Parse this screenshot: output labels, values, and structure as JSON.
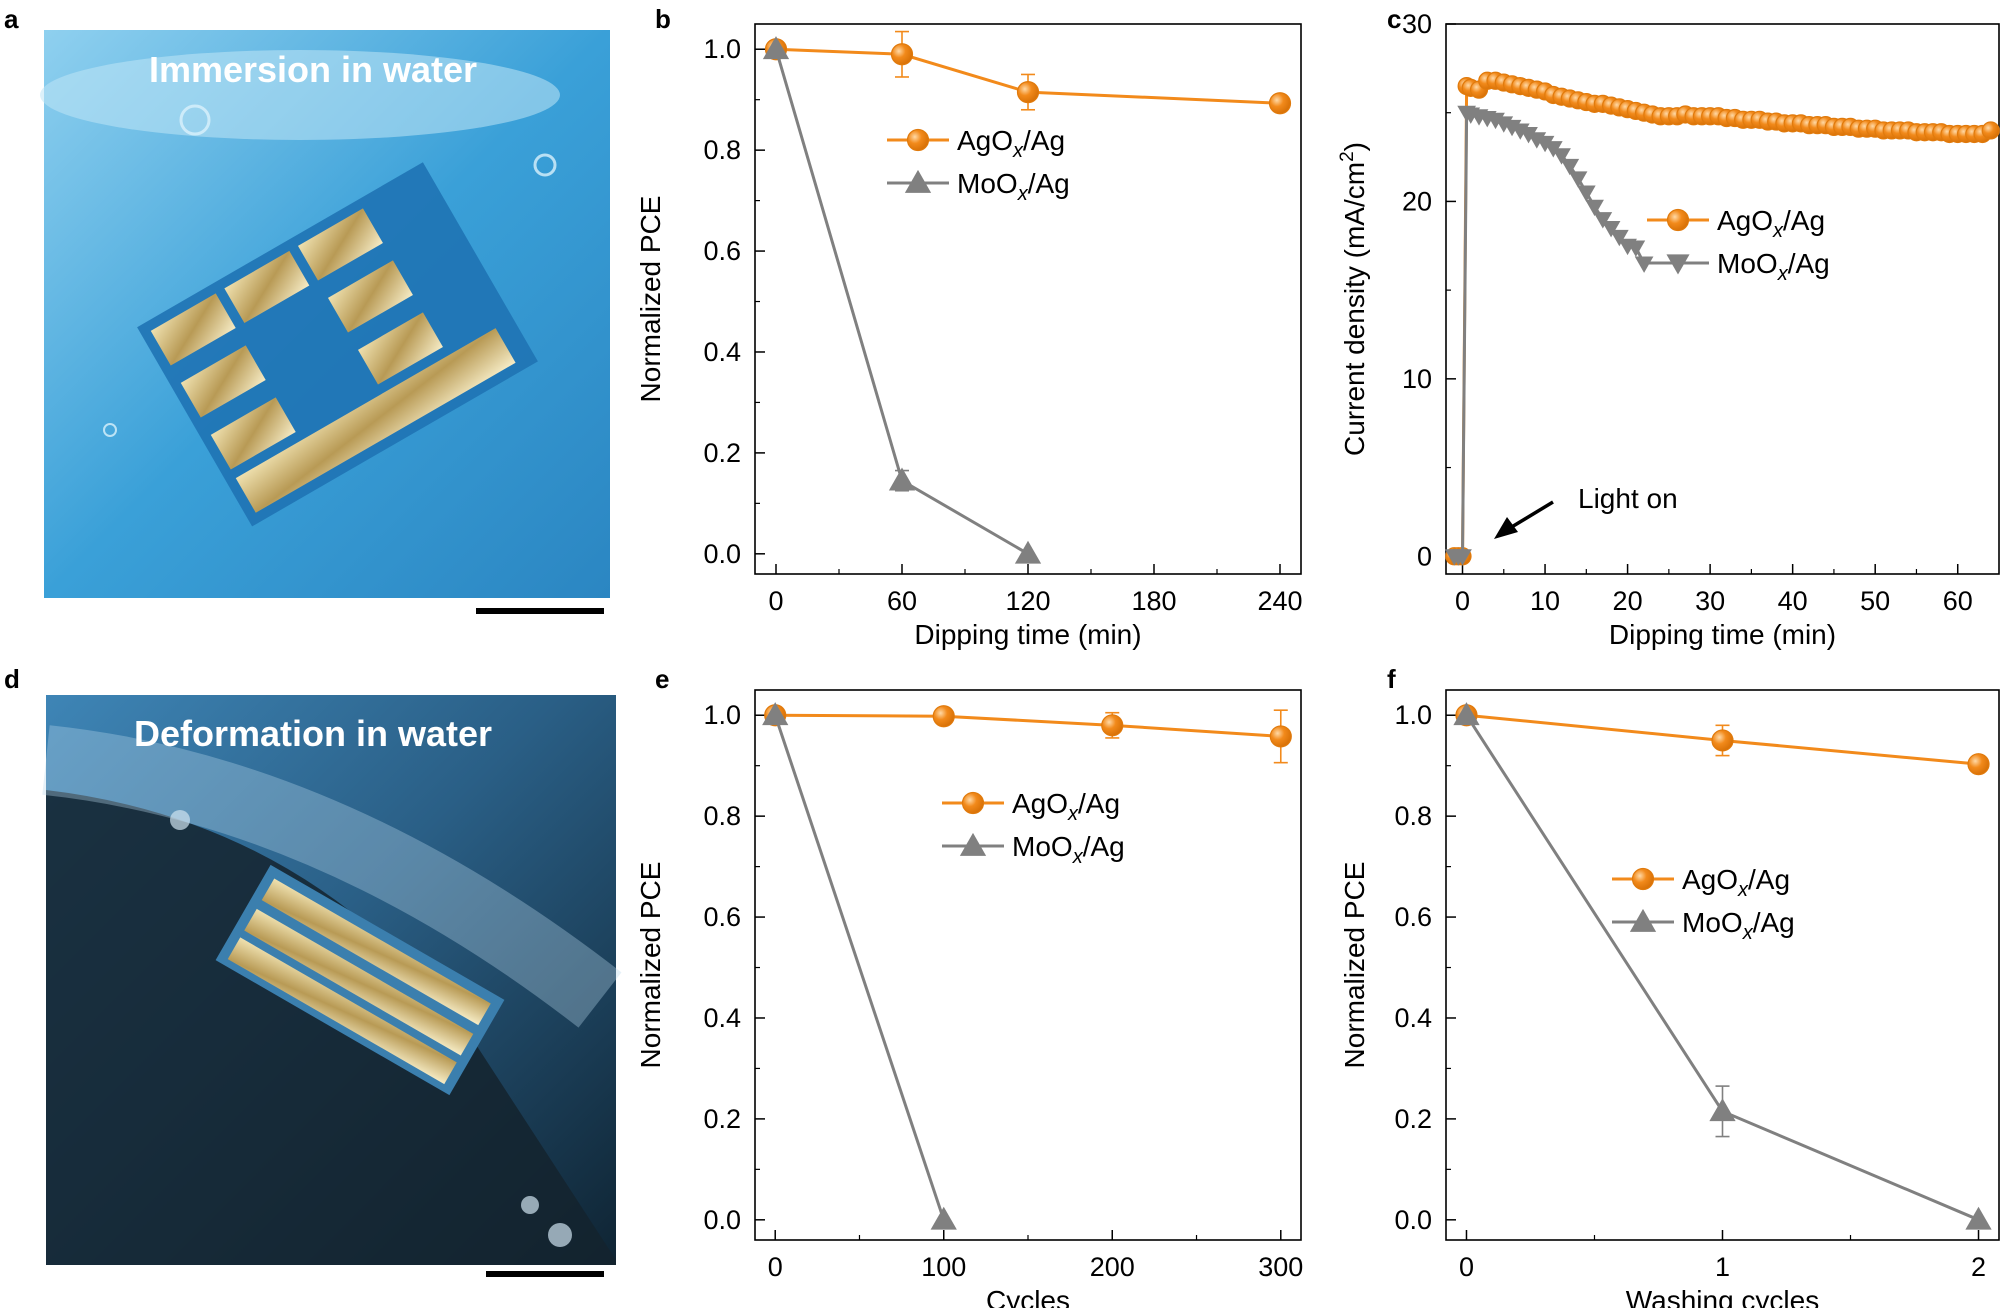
{
  "photos": {
    "a": {
      "letter": "a",
      "title": "Immersion in water"
    },
    "d": {
      "letter": "d",
      "title": "Deformation in water"
    }
  },
  "colors": {
    "agox": "#F28A1B",
    "moox": "#808080",
    "axis": "#000000"
  },
  "chart_data": [
    {
      "panel": "b",
      "type": "line",
      "xlabel": "Dipping time (min)",
      "ylabel": "Normalized PCE",
      "xlim": [
        -10,
        250
      ],
      "ylim": [
        -0.04,
        1.05
      ],
      "xticks": [
        0,
        60,
        120,
        180,
        240
      ],
      "yticks": [
        0.0,
        0.2,
        0.4,
        0.6,
        0.8,
        1.0
      ],
      "legend_position": "upper-middle",
      "series": [
        {
          "name": "AgOx/Ag",
          "marker": "circle",
          "x": [
            0,
            60,
            120,
            240
          ],
          "y": [
            1.0,
            0.99,
            0.915,
            0.893
          ],
          "err": [
            0,
            0.045,
            0.035,
            0
          ]
        },
        {
          "name": "MoOx/Ag",
          "marker": "triangle-up",
          "x": [
            0,
            60,
            120
          ],
          "y": [
            1.0,
            0.145,
            0.0
          ],
          "err": [
            0,
            0.02,
            0
          ]
        }
      ]
    },
    {
      "panel": "c",
      "type": "line",
      "xlabel": "Dipping time (min)",
      "ylabel": "Current density (mA/cm2)",
      "xlim": [
        -2,
        65
      ],
      "ylim": [
        -1,
        30
      ],
      "xticks": [
        0,
        10,
        20,
        30,
        40,
        50,
        60
      ],
      "yticks": [
        0,
        10,
        20,
        30
      ],
      "legend_position": "middle-right",
      "annotation": "Light on",
      "series": [
        {
          "name": "AgOx/Ag",
          "marker": "circle",
          "x": [
            -1,
            -0.5,
            0,
            0.5,
            1,
            2,
            3,
            4,
            5,
            6,
            7,
            8,
            9,
            10,
            11,
            12,
            13,
            14,
            15,
            16,
            17,
            18,
            19,
            20,
            21,
            22,
            23,
            24,
            25,
            26,
            27,
            28,
            29,
            30,
            31,
            32,
            33,
            34,
            35,
            36,
            37,
            38,
            39,
            40,
            41,
            42,
            43,
            44,
            45,
            46,
            47,
            48,
            49,
            50,
            51,
            52,
            53,
            54,
            55,
            56,
            57,
            58,
            59,
            60,
            61,
            62,
            63,
            64
          ],
          "y": [
            0,
            0,
            0,
            26.5,
            26.4,
            26.3,
            26.8,
            26.8,
            26.7,
            26.6,
            26.5,
            26.4,
            26.3,
            26.2,
            26.0,
            25.9,
            25.8,
            25.7,
            25.6,
            25.5,
            25.5,
            25.4,
            25.3,
            25.2,
            25.1,
            25.0,
            24.9,
            24.8,
            24.8,
            24.8,
            24.9,
            24.8,
            24.8,
            24.8,
            24.8,
            24.7,
            24.7,
            24.6,
            24.6,
            24.6,
            24.5,
            24.5,
            24.4,
            24.4,
            24.4,
            24.3,
            24.3,
            24.3,
            24.2,
            24.2,
            24.2,
            24.1,
            24.1,
            24.1,
            24.0,
            24.0,
            24.0,
            24.0,
            23.9,
            23.9,
            23.9,
            23.9,
            23.8,
            23.8,
            23.8,
            23.8,
            23.8,
            24.0
          ]
        },
        {
          "name": "MoOx/Ag",
          "marker": "triangle-down",
          "x": [
            -1,
            -0.5,
            0,
            0.5,
            1,
            2,
            3,
            4,
            5,
            6,
            7,
            8,
            9,
            10,
            11,
            12,
            13,
            14,
            15,
            16,
            17,
            18,
            19,
            20,
            21,
            22
          ],
          "y": [
            0,
            0,
            0,
            25.0,
            24.9,
            24.8,
            24.7,
            24.6,
            24.4,
            24.2,
            24.0,
            23.8,
            23.5,
            23.3,
            23.0,
            22.6,
            22.0,
            21.3,
            20.5,
            19.7,
            19.0,
            18.5,
            18.0,
            17.5,
            17.4,
            16.5
          ]
        }
      ]
    },
    {
      "panel": "e",
      "type": "line",
      "xlabel": "Cycles",
      "ylabel": "Normalized PCE",
      "xlim": [
        -12,
        312
      ],
      "ylim": [
        -0.04,
        1.05
      ],
      "xticks": [
        0,
        100,
        200,
        300
      ],
      "yticks": [
        0.0,
        0.2,
        0.4,
        0.6,
        0.8,
        1.0
      ],
      "legend_position": "upper-middle",
      "series": [
        {
          "name": "AgOx/Ag",
          "marker": "circle",
          "x": [
            0,
            100,
            200,
            300
          ],
          "y": [
            1.0,
            0.998,
            0.98,
            0.958
          ],
          "err": [
            0,
            0,
            0.025,
            0.052
          ]
        },
        {
          "name": "MoOx/Ag",
          "marker": "triangle-up",
          "x": [
            0,
            100
          ],
          "y": [
            1.0,
            0.0
          ],
          "err": [
            0,
            0
          ]
        }
      ]
    },
    {
      "panel": "f",
      "type": "line",
      "xlabel": "Washing cycles",
      "ylabel": "Normalized PCE",
      "xlim": [
        -0.08,
        2.08
      ],
      "ylim": [
        -0.04,
        1.05
      ],
      "xticks": [
        0,
        1,
        2
      ],
      "yticks": [
        0.0,
        0.2,
        0.4,
        0.6,
        0.8,
        1.0
      ],
      "legend_position": "middle",
      "series": [
        {
          "name": "AgOx/Ag",
          "marker": "circle",
          "x": [
            0,
            1,
            2
          ],
          "y": [
            1.0,
            0.95,
            0.903
          ],
          "err": [
            0,
            0.03,
            0
          ]
        },
        {
          "name": "MoOx/Ag",
          "marker": "triangle-up",
          "x": [
            0,
            1,
            2
          ],
          "y": [
            1.0,
            0.215,
            0.0
          ],
          "err": [
            0,
            0.05,
            0
          ]
        }
      ]
    }
  ]
}
